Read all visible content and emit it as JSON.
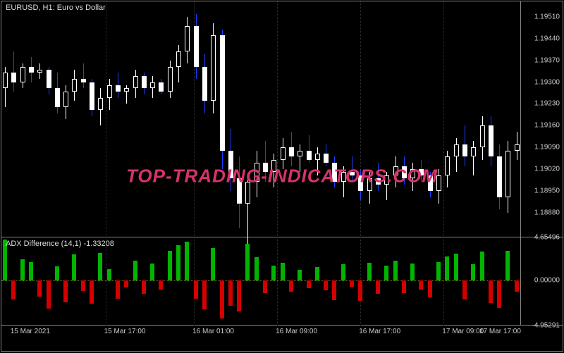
{
  "colors": {
    "bg": "#000000",
    "border": "#888888",
    "text": "#cccccc",
    "up_body_fill": "#000000",
    "up_border": "#ffffff",
    "up_wick": "#ffffff",
    "dn_body_fill": "#ffffff",
    "dn_border": "#ffffff",
    "dn_wick": "#1a40ff",
    "hist_up": "#00b400",
    "hist_dn": "#d40000",
    "zeroline": "#777700",
    "watermark": "#d6336c",
    "grid": "#303030"
  },
  "watermark_text": "TOP-TRADING-INDICATORS.COM",
  "main": {
    "title": "EURUSD, H1:  Euro vs  Dollar",
    "ymin": 1.188,
    "ymax": 1.1956,
    "ylabels": [
      "1.19510",
      "1.19440",
      "1.19370",
      "1.19300",
      "1.19230",
      "1.19160",
      "1.19090",
      "1.19020",
      "1.18950",
      "1.18880"
    ],
    "candles": [
      {
        "o": 1.1928,
        "h": 1.1935,
        "l": 1.1922,
        "c": 1.1933,
        "d": true
      },
      {
        "o": 1.1933,
        "h": 1.194,
        "l": 1.1927,
        "c": 1.193,
        "d": false
      },
      {
        "o": 1.193,
        "h": 1.1936,
        "l": 1.1928,
        "c": 1.1935,
        "d": true
      },
      {
        "o": 1.1935,
        "h": 1.1938,
        "l": 1.193,
        "c": 1.1933,
        "d": false
      },
      {
        "o": 1.1933,
        "h": 1.1936,
        "l": 1.1931,
        "c": 1.1934,
        "d": true
      },
      {
        "o": 1.1934,
        "h": 1.1935,
        "l": 1.1926,
        "c": 1.1928,
        "d": false
      },
      {
        "o": 1.1928,
        "h": 1.1933,
        "l": 1.192,
        "c": 1.1922,
        "d": false
      },
      {
        "o": 1.1922,
        "h": 1.1929,
        "l": 1.1918,
        "c": 1.1927,
        "d": true
      },
      {
        "o": 1.1927,
        "h": 1.1934,
        "l": 1.1924,
        "c": 1.1931,
        "d": true
      },
      {
        "o": 1.1931,
        "h": 1.1936,
        "l": 1.1928,
        "c": 1.193,
        "d": false
      },
      {
        "o": 1.193,
        "h": 1.1931,
        "l": 1.1919,
        "c": 1.1921,
        "d": false
      },
      {
        "o": 1.1921,
        "h": 1.1928,
        "l": 1.1916,
        "c": 1.1925,
        "d": true
      },
      {
        "o": 1.1925,
        "h": 1.1931,
        "l": 1.1921,
        "c": 1.1929,
        "d": true
      },
      {
        "o": 1.1929,
        "h": 1.1933,
        "l": 1.1925,
        "c": 1.1927,
        "d": false
      },
      {
        "o": 1.1927,
        "h": 1.1929,
        "l": 1.1923,
        "c": 1.1928,
        "d": true
      },
      {
        "o": 1.1928,
        "h": 1.1934,
        "l": 1.1925,
        "c": 1.1932,
        "d": true
      },
      {
        "o": 1.1932,
        "h": 1.1933,
        "l": 1.1926,
        "c": 1.1928,
        "d": false
      },
      {
        "o": 1.1928,
        "h": 1.1932,
        "l": 1.1925,
        "c": 1.193,
        "d": true
      },
      {
        "o": 1.193,
        "h": 1.1931,
        "l": 1.1926,
        "c": 1.1927,
        "d": false
      },
      {
        "o": 1.1927,
        "h": 1.1937,
        "l": 1.1925,
        "c": 1.1935,
        "d": true
      },
      {
        "o": 1.1935,
        "h": 1.1942,
        "l": 1.193,
        "c": 1.194,
        "d": true
      },
      {
        "o": 1.194,
        "h": 1.1951,
        "l": 1.1936,
        "c": 1.1948,
        "d": true
      },
      {
        "o": 1.1948,
        "h": 1.1952,
        "l": 1.1931,
        "c": 1.1935,
        "d": false
      },
      {
        "o": 1.1935,
        "h": 1.1939,
        "l": 1.192,
        "c": 1.1924,
        "d": false
      },
      {
        "o": 1.1924,
        "h": 1.1949,
        "l": 1.192,
        "c": 1.1945,
        "d": true
      },
      {
        "o": 1.1945,
        "h": 1.1947,
        "l": 1.1902,
        "c": 1.1908,
        "d": false
      },
      {
        "o": 1.1908,
        "h": 1.1915,
        "l": 1.1895,
        "c": 1.1899,
        "d": false
      },
      {
        "o": 1.1899,
        "h": 1.1906,
        "l": 1.1883,
        "c": 1.1891,
        "d": false
      },
      {
        "o": 1.1891,
        "h": 1.19,
        "l": 1.1872,
        "c": 1.1898,
        "d": true
      },
      {
        "o": 1.1898,
        "h": 1.1908,
        "l": 1.1893,
        "c": 1.1904,
        "d": true
      },
      {
        "o": 1.1904,
        "h": 1.1911,
        "l": 1.1898,
        "c": 1.1901,
        "d": false
      },
      {
        "o": 1.1901,
        "h": 1.1907,
        "l": 1.1896,
        "c": 1.1905,
        "d": true
      },
      {
        "o": 1.1905,
        "h": 1.1912,
        "l": 1.1902,
        "c": 1.1909,
        "d": true
      },
      {
        "o": 1.1909,
        "h": 1.1914,
        "l": 1.1903,
        "c": 1.1906,
        "d": false
      },
      {
        "o": 1.1906,
        "h": 1.191,
        "l": 1.1901,
        "c": 1.1908,
        "d": true
      },
      {
        "o": 1.1908,
        "h": 1.1913,
        "l": 1.1904,
        "c": 1.1905,
        "d": false
      },
      {
        "o": 1.1905,
        "h": 1.1909,
        "l": 1.19,
        "c": 1.1907,
        "d": true
      },
      {
        "o": 1.1907,
        "h": 1.191,
        "l": 1.1903,
        "c": 1.1904,
        "d": false
      },
      {
        "o": 1.1904,
        "h": 1.1906,
        "l": 1.1896,
        "c": 1.1898,
        "d": false
      },
      {
        "o": 1.1898,
        "h": 1.1903,
        "l": 1.1893,
        "c": 1.1901,
        "d": true
      },
      {
        "o": 1.1901,
        "h": 1.1906,
        "l": 1.1898,
        "c": 1.19,
        "d": false
      },
      {
        "o": 1.19,
        "h": 1.1902,
        "l": 1.1892,
        "c": 1.1895,
        "d": false
      },
      {
        "o": 1.1895,
        "h": 1.1901,
        "l": 1.1891,
        "c": 1.1899,
        "d": true
      },
      {
        "o": 1.1899,
        "h": 1.1904,
        "l": 1.1895,
        "c": 1.1897,
        "d": false
      },
      {
        "o": 1.1897,
        "h": 1.1901,
        "l": 1.1892,
        "c": 1.19,
        "d": true
      },
      {
        "o": 1.19,
        "h": 1.1906,
        "l": 1.1896,
        "c": 1.1903,
        "d": true
      },
      {
        "o": 1.1903,
        "h": 1.1906,
        "l": 1.1897,
        "c": 1.1899,
        "d": false
      },
      {
        "o": 1.1899,
        "h": 1.1904,
        "l": 1.1895,
        "c": 1.1902,
        "d": true
      },
      {
        "o": 1.1902,
        "h": 1.1905,
        "l": 1.1898,
        "c": 1.19,
        "d": false
      },
      {
        "o": 1.19,
        "h": 1.1901,
        "l": 1.1893,
        "c": 1.1895,
        "d": false
      },
      {
        "o": 1.1895,
        "h": 1.1902,
        "l": 1.1891,
        "c": 1.19,
        "d": true
      },
      {
        "o": 1.19,
        "h": 1.1908,
        "l": 1.1896,
        "c": 1.1906,
        "d": true
      },
      {
        "o": 1.1906,
        "h": 1.1912,
        "l": 1.1901,
        "c": 1.191,
        "d": true
      },
      {
        "o": 1.191,
        "h": 1.1916,
        "l": 1.1903,
        "c": 1.1906,
        "d": false
      },
      {
        "o": 1.1906,
        "h": 1.1911,
        "l": 1.19,
        "c": 1.1909,
        "d": true
      },
      {
        "o": 1.1909,
        "h": 1.1919,
        "l": 1.1905,
        "c": 1.1916,
        "d": true
      },
      {
        "o": 1.1916,
        "h": 1.1919,
        "l": 1.1903,
        "c": 1.1906,
        "d": false
      },
      {
        "o": 1.1906,
        "h": 1.191,
        "l": 1.1889,
        "c": 1.1893,
        "d": false
      },
      {
        "o": 1.1893,
        "h": 1.1911,
        "l": 1.1888,
        "c": 1.1908,
        "d": true
      },
      {
        "o": 1.1908,
        "h": 1.1914,
        "l": 1.1905,
        "c": 1.191,
        "d": true
      }
    ]
  },
  "sub": {
    "title": "ADX Difference (14,1) -1.33208",
    "ymin": -4.95291,
    "ymax": 4.65496,
    "ylabels": [
      "4.65496",
      "0.00000",
      "-4.95291"
    ],
    "bars": [
      4.4,
      -2.1,
      2.3,
      2.0,
      -1.8,
      -3.1,
      1.5,
      -2.4,
      2.8,
      -1.2,
      -2.6,
      3.0,
      1.2,
      -2.0,
      -0.8,
      2.1,
      -1.5,
      1.8,
      -1.0,
      3.2,
      3.8,
      4.2,
      -2.0,
      -3.2,
      3.5,
      -4.2,
      -2.8,
      -3.4,
      4.0,
      2.5,
      -1.4,
      1.6,
      1.9,
      -1.3,
      1.1,
      -0.9,
      1.4,
      -1.1,
      -2.2,
      1.7,
      -0.7,
      -2.3,
      1.9,
      -1.5,
      1.6,
      2.1,
      -1.4,
      1.8,
      -1.0,
      -1.9,
      2.0,
      2.6,
      2.9,
      -2.1,
      1.7,
      3.1,
      -2.5,
      -3.0,
      3.2,
      -1.3
    ]
  },
  "xaxis": {
    "ticks": [
      {
        "pos": 0.02,
        "label": "15 Mar 2021"
      },
      {
        "pos": 0.2,
        "label": "15 Mar 17:00"
      },
      {
        "pos": 0.37,
        "label": "16 Mar 01:00"
      },
      {
        "pos": 0.53,
        "label": "16 Mar 09:00"
      },
      {
        "pos": 0.69,
        "label": "16 Mar 17:00"
      },
      {
        "pos": 0.85,
        "label": "17 Mar 09:00"
      },
      {
        "pos": 1.0,
        "label": "17 Mar 17:00"
      }
    ]
  }
}
